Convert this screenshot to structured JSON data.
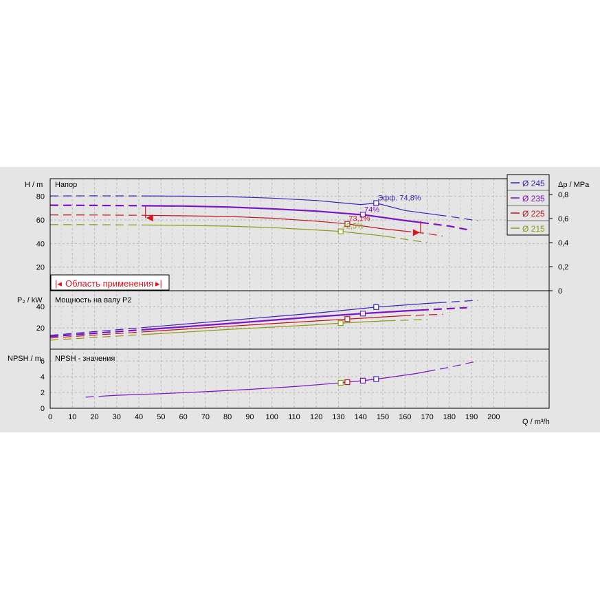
{
  "colors": {
    "d245": "#3d1fb8",
    "d235": "#7a12c8",
    "d225": "#c0141e",
    "d215": "#8a9b12",
    "range": "#e0141e"
  },
  "labels": {
    "head_title": "Напор",
    "power_title": "Мощность на валу P2",
    "npsh_title": "NPSH - значения",
    "h_axis": "H / m",
    "p_axis": "P₂ / kW",
    "npsh_axis": "NPSH / m",
    "dp_axis": "Δp / MPa",
    "q_axis": "Q / m³/h",
    "range_label": "Область применения",
    "eff_prefix": "Эфф.",
    "eff_245": "74,8%",
    "eff_235": "74%",
    "eff_225": "73,1%",
    "eff_215": "72,5%"
  },
  "legend": [
    {
      "label": "Ø 245",
      "color_key": "d245"
    },
    {
      "label": "Ø 235",
      "color_key": "d235"
    },
    {
      "label": "Ø 225",
      "color_key": "d225"
    },
    {
      "label": "Ø 215",
      "color_key": "d215"
    }
  ],
  "chart_data": [
    {
      "type": "line",
      "title": "Напор",
      "xlabel": "Q / m³/h",
      "ylabel": "H / m",
      "y2label": "Δp / MPa",
      "xlim": [
        0,
        225
      ],
      "ylim": [
        0,
        95
      ],
      "x_ticks": [
        0,
        10,
        20,
        30,
        40,
        50,
        60,
        70,
        80,
        90,
        100,
        110,
        120,
        130,
        140,
        150,
        160,
        170,
        180,
        190,
        200
      ],
      "y_ticks": [
        20,
        40,
        60,
        80
      ],
      "y2_ticks": [
        "0",
        "0,2",
        "0,4",
        "0,6",
        "0,8"
      ],
      "legend_position": "top-right",
      "grid": true,
      "series": [
        {
          "name": "Ø 245",
          "points": [
            [
              0,
              80.4
            ],
            [
              20,
              80.5
            ],
            [
              40,
              80.4
            ],
            [
              60,
              80.2
            ],
            [
              80,
              79.8
            ],
            [
              100,
              78.5
            ],
            [
              120,
              76.5
            ],
            [
              140,
              73
            ],
            [
              147,
              74.3
            ],
            [
              160,
              68
            ],
            [
              180,
              63
            ],
            [
              193,
              59.3
            ]
          ],
          "operating_point": [
            147,
            74.3
          ],
          "efficiency": "74,8%"
        },
        {
          "name": "Ø 235",
          "points": [
            [
              0,
              72.5
            ],
            [
              20,
              72.3
            ],
            [
              40,
              72.1
            ],
            [
              60,
              71.8
            ],
            [
              80,
              71
            ],
            [
              100,
              69.5
            ],
            [
              120,
              67.5
            ],
            [
              140,
              64.5
            ],
            [
              141,
              64.5
            ],
            [
              160,
              59.5
            ],
            [
              180,
              54.8
            ],
            [
              188,
              51.8
            ]
          ],
          "operating_point": [
            141,
            64.5
          ],
          "efficiency": "74%"
        },
        {
          "name": "Ø 225",
          "points": [
            [
              0,
              64.3
            ],
            [
              20,
              64.2
            ],
            [
              40,
              64
            ],
            [
              60,
              63.5
            ],
            [
              80,
              63
            ],
            [
              100,
              61.5
            ],
            [
              120,
              59
            ],
            [
              134,
              56.7
            ],
            [
              150,
              52.5
            ],
            [
              170,
              48.5
            ],
            [
              177,
              46.3
            ]
          ],
          "operating_point": [
            134,
            56.7
          ],
          "efficiency": "73,1%"
        },
        {
          "name": "Ø 215",
          "points": [
            [
              0,
              56
            ],
            [
              20,
              56
            ],
            [
              40,
              55.8
            ],
            [
              60,
              55.4
            ],
            [
              80,
              54.8
            ],
            [
              100,
              53.5
            ],
            [
              120,
              51.5
            ],
            [
              131,
              50.3
            ],
            [
              150,
              46.5
            ],
            [
              170,
              40.8
            ]
          ],
          "operating_point": [
            131,
            50.3
          ],
          "efficiency": "72,5%"
        }
      ],
      "application_range": {
        "q_min": 43,
        "q_max": 167,
        "label": "Область применения"
      }
    },
    {
      "type": "line",
      "title": "Мощность на валу P2",
      "xlabel": "Q / m³/h",
      "ylabel": "P₂ / kW",
      "xlim": [
        0,
        225
      ],
      "ylim": [
        0,
        55
      ],
      "y_ticks": [
        20,
        40
      ],
      "series": [
        {
          "name": "Ø 245",
          "points": [
            [
              0,
              13
            ],
            [
              40,
              20
            ],
            [
              80,
              27
            ],
            [
              120,
              34
            ],
            [
              147,
              39.6
            ],
            [
              170,
              43
            ],
            [
              193,
              46
            ]
          ]
        },
        {
          "name": "Ø 235",
          "points": [
            [
              0,
              12
            ],
            [
              40,
              18
            ],
            [
              80,
              24
            ],
            [
              120,
              30.5
            ],
            [
              141,
              33.5
            ],
            [
              160,
              36
            ],
            [
              188,
              39
            ]
          ]
        },
        {
          "name": "Ø 225",
          "points": [
            [
              0,
              10.5
            ],
            [
              40,
              16
            ],
            [
              80,
              21.5
            ],
            [
              120,
              26.5
            ],
            [
              134,
              28.3
            ],
            [
              160,
              31.5
            ],
            [
              177,
              32.8
            ]
          ]
        },
        {
          "name": "Ø 215",
          "points": [
            [
              0,
              8.5
            ],
            [
              40,
              13.5
            ],
            [
              80,
              18.5
            ],
            [
              120,
              23
            ],
            [
              131,
              24.5
            ],
            [
              150,
              26.5
            ],
            [
              170,
              28
            ]
          ]
        }
      ]
    },
    {
      "type": "line",
      "title": "NPSH - значения",
      "xlabel": "Q / m³/h",
      "ylabel": "NPSH / m",
      "xlim": [
        0,
        225
      ],
      "ylim": [
        0,
        7.5
      ],
      "y_ticks": [
        0,
        2,
        4,
        6
      ],
      "series": [
        {
          "name": "NPSH",
          "points": [
            [
              16,
              1.4
            ],
            [
              30,
              1.65
            ],
            [
              50,
              1.85
            ],
            [
              70,
              2.1
            ],
            [
              90,
              2.4
            ],
            [
              110,
              2.75
            ],
            [
              130,
              3.2
            ],
            [
              141,
              3.5
            ],
            [
              150,
              3.8
            ],
            [
              165,
              4.4
            ],
            [
              180,
              5.2
            ],
            [
              193,
              6
            ]
          ],
          "markers": [
            131,
            134,
            141,
            147
          ]
        }
      ]
    }
  ]
}
